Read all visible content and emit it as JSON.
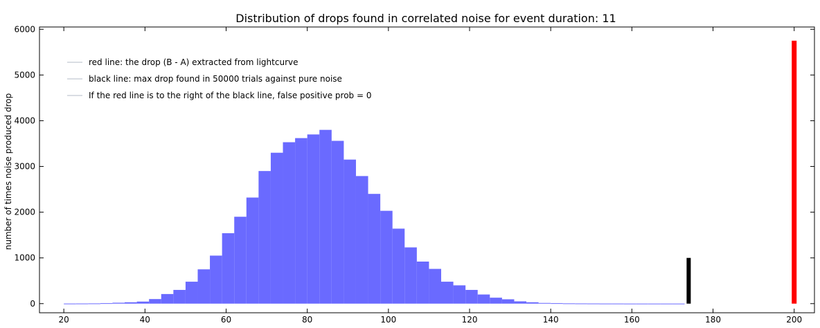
{
  "chart_data": {
    "type": "bar",
    "title": "Distribution of drops found in correlated noise for event duration: 11",
    "xlabel": "",
    "ylabel": "number of times noise produced drop",
    "xlim": [
      14,
      205
    ],
    "ylim": [
      -200,
      6050
    ],
    "x_ticks": [
      20,
      40,
      60,
      80,
      100,
      120,
      140,
      160,
      180,
      200
    ],
    "y_ticks": [
      0,
      1000,
      2000,
      3000,
      4000,
      5000,
      6000
    ],
    "grid": false,
    "legend_placement": "top-left",
    "legend": [
      "red line: the drop (B - A) extracted from lightcurve",
      "black line: max drop found in 50000 trials against pure noise",
      "If the red line is to the right of the black line, false positive prob = 0"
    ],
    "histogram": {
      "bin_width": 3,
      "bin_starts": [
        20,
        23,
        26,
        29,
        32,
        35,
        38,
        41,
        44,
        47,
        50,
        53,
        56,
        59,
        62,
        65,
        68,
        71,
        74,
        77,
        80,
        83,
        86,
        89,
        92,
        95,
        98,
        101,
        104,
        107,
        110,
        113,
        116,
        119,
        122,
        125,
        128,
        131,
        134,
        137,
        140,
        143,
        146,
        149,
        152,
        155,
        158,
        161,
        164,
        167,
        170
      ],
      "counts": [
        2,
        3,
        5,
        10,
        20,
        30,
        45,
        100,
        210,
        300,
        480,
        750,
        1050,
        1540,
        1900,
        2320,
        2900,
        3300,
        3530,
        3620,
        3700,
        3800,
        3560,
        3150,
        2790,
        2400,
        2030,
        1640,
        1230,
        920,
        760,
        480,
        400,
        300,
        200,
        130,
        95,
        50,
        30,
        15,
        10,
        6,
        4,
        3,
        2,
        2,
        1,
        1,
        1,
        1,
        1
      ],
      "color": "#6a6aff"
    },
    "red_line": {
      "x": 200,
      "height": 5750,
      "color": "#ff0000"
    },
    "black_line": {
      "x": 174,
      "height": 1000,
      "color": "#000000"
    }
  }
}
